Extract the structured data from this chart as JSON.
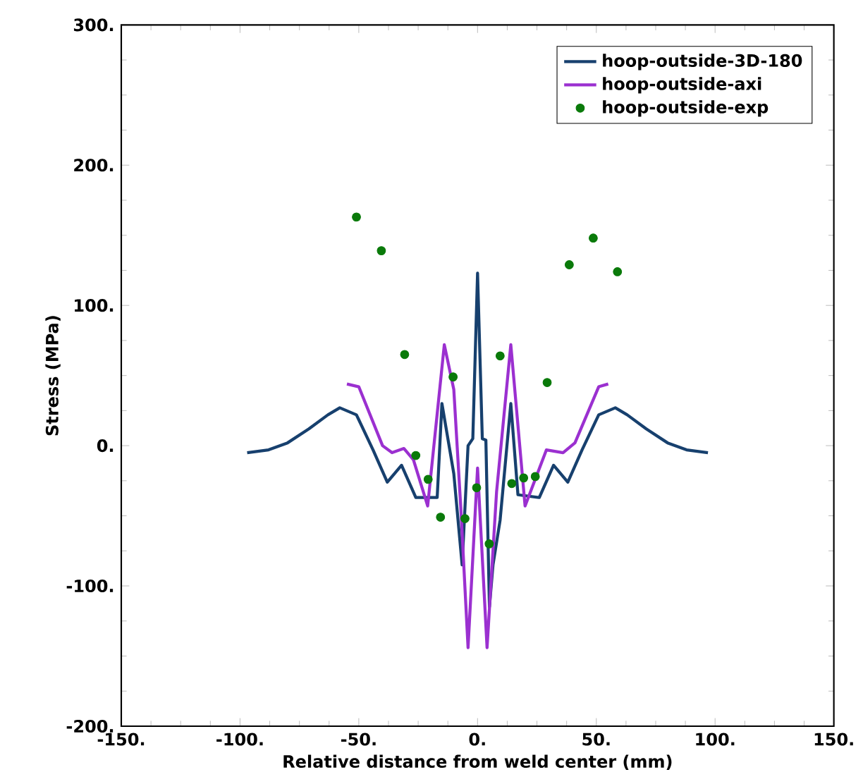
{
  "chart_data": {
    "type": "line",
    "xlabel": "Relative distance from weld center (mm)",
    "ylabel": "Stress (MPa)",
    "xlim": [
      -150,
      150
    ],
    "ylim": [
      -200,
      300
    ],
    "xticks": [
      {
        "value": -150,
        "label": "-150."
      },
      {
        "value": -100,
        "label": "-100."
      },
      {
        "value": -50,
        "label": "-50."
      },
      {
        "value": 0,
        "label": "0."
      },
      {
        "value": 50,
        "label": "50."
      },
      {
        "value": 100,
        "label": "100."
      },
      {
        "value": 150,
        "label": "150."
      }
    ],
    "yticks": [
      {
        "value": -200,
        "label": "-200."
      },
      {
        "value": -100,
        "label": "-100."
      },
      {
        "value": 0,
        "label": "0."
      },
      {
        "value": 100,
        "label": "100."
      },
      {
        "value": 200,
        "label": "200."
      },
      {
        "value": 300,
        "label": "300."
      }
    ],
    "grid": false,
    "legend": "top right",
    "series": [
      {
        "name": "hoop-outside-3D-180",
        "color": "#17406e",
        "x": [
          -97,
          -88,
          -80,
          -71,
          -63,
          -58,
          -51,
          -44,
          -38,
          -32,
          -26,
          -17,
          -15,
          -10,
          -6.5,
          -4,
          -2,
          0,
          2,
          3.5,
          5,
          6.5,
          9.5,
          14,
          17,
          26,
          32,
          38,
          44,
          51,
          58,
          63,
          71,
          80,
          88,
          97
        ],
        "values": [
          -5,
          -3,
          2,
          12,
          22,
          27,
          22,
          -3,
          -26,
          -14,
          -37,
          -37,
          30,
          -20,
          -85,
          0,
          5,
          123,
          5,
          4,
          -115,
          -85,
          -53,
          30,
          -35,
          -37,
          -14,
          -26,
          -3,
          22,
          27,
          22,
          12,
          2,
          -3,
          -5
        ]
      },
      {
        "name": "hoop-outside-axi",
        "color": "#9b30d0",
        "x": [
          -55,
          -50,
          -40,
          -36,
          -31,
          -27,
          -21,
          -14,
          -10,
          -7,
          -4,
          0,
          4,
          8,
          14,
          20,
          29,
          36,
          41,
          51,
          55
        ],
        "values": [
          44,
          42,
          0,
          -5,
          -2,
          -10,
          -43,
          72,
          40,
          -46,
          -144,
          -16,
          -144,
          -33,
          72,
          -43,
          -3,
          -5,
          2,
          42,
          44
        ]
      },
      {
        "name": "hoop-outside-exp",
        "type": "scatter",
        "color": "#0a7a0a",
        "marker": "circle",
        "x": [
          -51,
          -40.5,
          -30.7,
          -26,
          -20.8,
          -15.6,
          -10.3,
          -5.3,
          -0.4,
          4.9,
          9.5,
          14.4,
          19.4,
          24.3,
          29.3,
          38.6,
          48.7,
          58.9
        ],
        "values": [
          163,
          139,
          65,
          -7,
          -24,
          -51,
          49,
          -52,
          -30,
          -70,
          64,
          -27,
          -23,
          -22,
          45,
          129,
          148,
          124
        ]
      }
    ]
  }
}
